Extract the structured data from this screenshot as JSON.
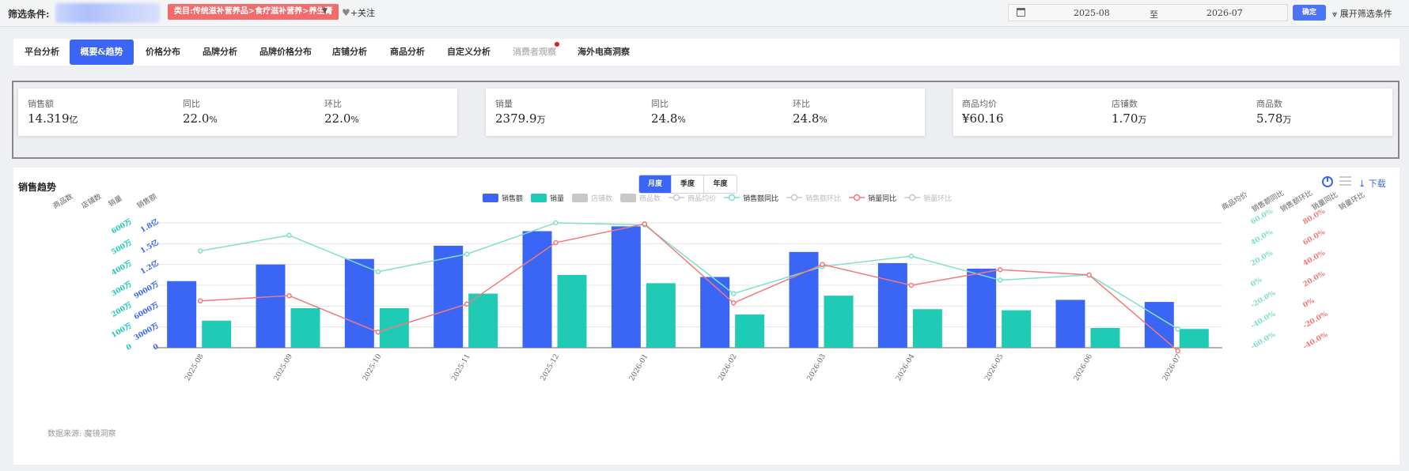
{
  "filter": {
    "label": "筛选条件:",
    "category_tag": "类目:传统滋补营养品>食疗滋补营养>养生膏",
    "follow_label": "+关注",
    "date_from": "2025-08",
    "date_sep": "至",
    "date_to": "2026-07",
    "confirm_label": "确定",
    "expand_label": "展开筛选条件"
  },
  "tabs": [
    {
      "label": "平台分析",
      "active": false
    },
    {
      "label": "概要&趋势",
      "active": true
    },
    {
      "label": "价格分布",
      "active": false
    },
    {
      "label": "品牌分析",
      "active": false
    },
    {
      "label": "品牌价格分布",
      "active": false
    },
    {
      "label": "店铺分析",
      "active": false
    },
    {
      "label": "商品分析",
      "active": false
    },
    {
      "label": "自定义分析",
      "active": false
    },
    {
      "label": "消费者观察",
      "active": false,
      "muted": true,
      "dot": true
    },
    {
      "label": "海外电商洞察",
      "active": false
    }
  ],
  "kpis": [
    {
      "items": [
        {
          "label": "销售额",
          "value": "14.319",
          "unit": "亿"
        },
        {
          "label": "同比",
          "value": "22.0",
          "unit": "%"
        },
        {
          "label": "环比",
          "value": "22.0",
          "unit": "%"
        }
      ]
    },
    {
      "items": [
        {
          "label": "销量",
          "value": "2379.9",
          "unit": "万"
        },
        {
          "label": "同比",
          "value": "24.8",
          "unit": "%"
        },
        {
          "label": "环比",
          "value": "24.8",
          "unit": "%"
        }
      ]
    },
    {
      "items": [
        {
          "label": "商品均价",
          "value": "¥60.16",
          "unit": ""
        },
        {
          "label": "店铺数",
          "value": "1.70",
          "unit": "万"
        },
        {
          "label": "商品数",
          "value": "5.78",
          "unit": "万"
        }
      ]
    }
  ],
  "chart_section": {
    "title": "销售趋势",
    "periods": [
      "月度",
      "季度",
      "年度"
    ],
    "active_period": "月度",
    "download_label": "下载",
    "source": "数据来源: 魔镜洞察"
  },
  "colors": {
    "accent": "#3b66f5",
    "sales_bar": "#3b66f5",
    "volume_bar": "#20cbb5",
    "sales_yoy": "#7fe0cc",
    "volume_yoy": "#f27a7a",
    "inactive": "#c8c8c8"
  },
  "chart_data": {
    "type": "bar",
    "categories": [
      "2025-08",
      "2025-09",
      "2025-10",
      "2025-11",
      "2025-12",
      "2026-01",
      "2026-02",
      "2026-03",
      "2026-04",
      "2026-05",
      "2026-06",
      "2026-07"
    ],
    "legend": [
      {
        "name": "销售额",
        "kind": "bar",
        "active": true
      },
      {
        "name": "销量",
        "kind": "bar",
        "active": true
      },
      {
        "name": "店铺数",
        "kind": "bar",
        "active": false
      },
      {
        "name": "商品数",
        "kind": "bar",
        "active": false
      },
      {
        "name": "商品均价",
        "kind": "line",
        "active": false
      },
      {
        "name": "销售额同比",
        "kind": "line",
        "active": true
      },
      {
        "name": "销售额环比",
        "kind": "line",
        "active": false
      },
      {
        "name": "销量同比",
        "kind": "line",
        "active": true
      },
      {
        "name": "销量环比",
        "kind": "line",
        "active": false
      }
    ],
    "left_axis_names": [
      "商品数",
      "店铺数",
      "销量",
      "销售额"
    ],
    "right_axis_names": [
      "商品均价",
      "销售额同比",
      "销售额环比",
      "销量同比",
      "销量环比"
    ],
    "series": [
      {
        "name": "销售额",
        "type": "bar",
        "unit": "万",
        "values": [
          9600,
          12000,
          12800,
          14700,
          16800,
          17500,
          10200,
          13800,
          12200,
          11400,
          6900,
          6600
        ]
      },
      {
        "name": "销量",
        "type": "bar",
        "unit": "万",
        "values": [
          130,
          190,
          190,
          260,
          350,
          310,
          160,
          250,
          185,
          180,
          95,
          90
        ]
      },
      {
        "name": "销售额同比",
        "type": "line",
        "unit": "%",
        "values": [
          33,
          48,
          13,
          30,
          60,
          58,
          -8,
          18,
          28,
          5,
          10,
          -42
        ]
      },
      {
        "name": "销量同比",
        "type": "line",
        "unit": "%",
        "values": [
          5,
          10,
          -25,
          2,
          61,
          79,
          3,
          40,
          20,
          35,
          30,
          -43
        ]
      }
    ],
    "axes": {
      "sales": {
        "ticks": [
          "0",
          "3000万",
          "6000万",
          "9000万",
          "1.2亿",
          "1.5亿",
          "1.8亿"
        ],
        "min": 0,
        "max": 18000
      },
      "volume": {
        "ticks": [
          "0",
          "100万",
          "200万",
          "300万",
          "400万",
          "500万",
          "600万"
        ],
        "min": 0,
        "max": 600
      },
      "sales_yoy": {
        "ticks": [
          "-60.0%",
          "-40.0%",
          "-20.0%",
          "0%",
          "20.0%",
          "40.0%",
          "60.0%"
        ],
        "min": -60,
        "max": 60
      },
      "volume_yoy": {
        "ticks": [
          "-40.0%",
          "-20.0%",
          "0%",
          "20.0%",
          "40.0%",
          "60.0%",
          "80.0%"
        ],
        "min": -40,
        "max": 80
      }
    },
    "legend_position": "top-center",
    "grid": true
  }
}
